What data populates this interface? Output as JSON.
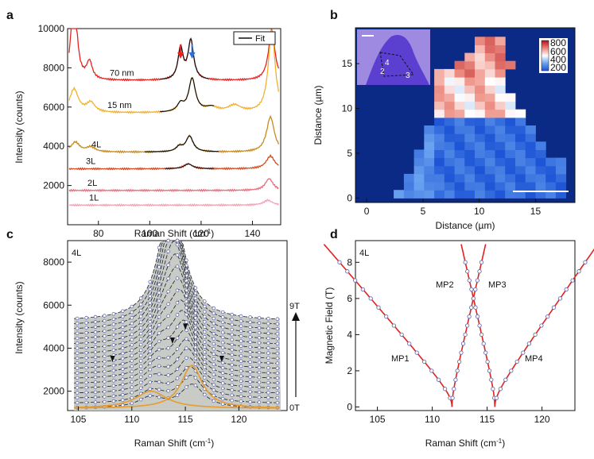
{
  "chart_data": [
    {
      "panel": "a",
      "type": "line",
      "xlabel": "Raman Shift (cm",
      "xlabel_sup": "-1",
      "xlabel_close": ")",
      "ylabel": "Intensity (counts)",
      "xlim": [
        68,
        151
      ],
      "ylim": [
        0,
        10000
      ],
      "xticks": [
        80,
        100,
        120,
        140
      ],
      "yticks": [
        2000,
        4000,
        6000,
        8000,
        10000
      ],
      "legend": "Fit",
      "series": [
        {
          "name": "70 nm",
          "color": "#e8231f",
          "base": 7350,
          "peaks": [
            [
              70.5,
              5000,
              1.2
            ],
            [
              76.5,
              900,
              1.3
            ],
            [
              112,
              1600,
              1.2
            ],
            [
              116,
              2000,
              1.3
            ],
            [
              147.5,
              2600,
              1.5
            ]
          ],
          "fit": [
            104,
            123
          ]
        },
        {
          "name": "15 nm",
          "color": "#f2b12c",
          "base": 5700,
          "peaks": [
            [
              70.5,
              1200,
              2.0
            ],
            [
              77,
              500,
              2.0
            ],
            [
              112,
              400,
              1.5
            ],
            [
              116.5,
              1700,
              1.6
            ],
            [
              124,
              250,
              3.0
            ],
            [
              133,
              350,
              3.0
            ],
            [
              147.5,
              4200,
              1.6
            ]
          ],
          "fit": [
            104,
            125
          ]
        },
        {
          "name": "4L",
          "color": "#c78a1c",
          "base": 3700,
          "peaks": [
            [
              71,
              500,
              2.0
            ],
            [
              77,
              250,
              2.0
            ],
            [
              111.5,
              250,
              1.5
            ],
            [
              115.5,
              800,
              1.7
            ],
            [
              147,
              1800,
              1.8
            ]
          ],
          "fit": [
            98,
            127
          ]
        },
        {
          "name": "3L",
          "color": "#d84a1c",
          "base": 2850,
          "peaks": [
            [
              115,
              250,
              2.0
            ],
            [
              147,
              650,
              2.0
            ]
          ],
          "fit": [
            106,
            125
          ]
        },
        {
          "name": "2L",
          "color": "#ec6a7a",
          "base": 1750,
          "peaks": [
            [
              146.5,
              600,
              1.8
            ]
          ],
          "fit": null
        },
        {
          "name": "1L",
          "color": "#f4a0b4",
          "base": 1000,
          "peaks": [
            [
              146,
              250,
              2.0
            ]
          ],
          "fit": null
        }
      ],
      "arrows": [
        {
          "x": 112,
          "color": "#e8231f"
        },
        {
          "x": 116.5,
          "color": "#2f6fd6"
        }
      ]
    },
    {
      "panel": "b",
      "type": "heatmap",
      "xlabel": "Distance (µm)",
      "ylabel": "Distance (µm)",
      "xlim": [
        -1,
        18.5
      ],
      "ylim": [
        -0.5,
        19
      ],
      "xticks": [
        0,
        5,
        10,
        15
      ],
      "yticks": [
        0,
        5,
        10,
        15
      ],
      "colorbar": {
        "ticks": [
          800,
          600,
          400,
          200
        ],
        "range": [
          200,
          800
        ]
      },
      "background": "#0b2a86",
      "inset_labels": [
        "4",
        "2",
        "3"
      ]
    },
    {
      "panel": "c",
      "type": "line",
      "label": "4L",
      "xlabel": "Raman Shift (cm",
      "xlabel_sup": "-1",
      "xlabel_close": ")",
      "ylabel": "Intensity (counts)",
      "xlim": [
        104,
        124.5
      ],
      "ylim": [
        1100,
        9000
      ],
      "xticks": [
        105,
        110,
        115,
        120
      ],
      "yticks": [
        2000,
        4000,
        6000,
        8000
      ],
      "field_top": "9T",
      "field_bottom": "0T",
      "n_traces": 19,
      "base_start": 1200,
      "base_step": 225,
      "components": [
        [
          111.8,
          800,
          1.8
        ],
        [
          115.6,
          2000,
          1.2
        ]
      ]
    },
    {
      "panel": "d",
      "type": "line",
      "label": "4L",
      "xlabel": "Raman Shift (cm",
      "xlabel_sup": "-1",
      "xlabel_close": ")",
      "ylabel": "Magnetic Field (T)",
      "xlim": [
        103,
        123
      ],
      "ylim": [
        -0.2,
        9.2
      ],
      "xticks": [
        105,
        110,
        115,
        120
      ],
      "yticks": [
        0,
        2,
        4,
        6,
        8
      ],
      "branches": [
        {
          "name": "MP1",
          "x0": 111.8,
          "k": -3.05
        },
        {
          "name": "MP2",
          "x0": 111.8,
          "k": 0.8
        },
        {
          "name": "MP3",
          "x0": 115.7,
          "k": -0.8
        },
        {
          "name": "MP4",
          "x0": 115.7,
          "k": 2.45
        }
      ]
    }
  ]
}
